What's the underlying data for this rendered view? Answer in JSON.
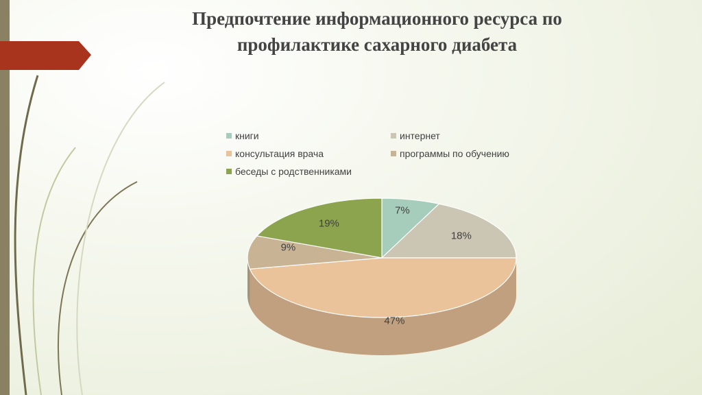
{
  "title": "Предпочтение информационного ресурса по профилактике сахарного диабета",
  "chart_data": {
    "type": "pie",
    "categories": [
      "книги",
      "интернет",
      "консультация врача",
      "программы по обучению",
      "беседы с родственниками"
    ],
    "values": [
      7,
      18,
      47,
      9,
      19
    ],
    "data_labels": [
      "7%",
      "18%",
      "47%",
      "9%",
      "19%"
    ],
    "colors": [
      "#a6cdbb",
      "#cbc5b3",
      "#eac39a",
      "#c8b395",
      "#8da44e"
    ],
    "legend_position": "top",
    "style": "3d"
  }
}
